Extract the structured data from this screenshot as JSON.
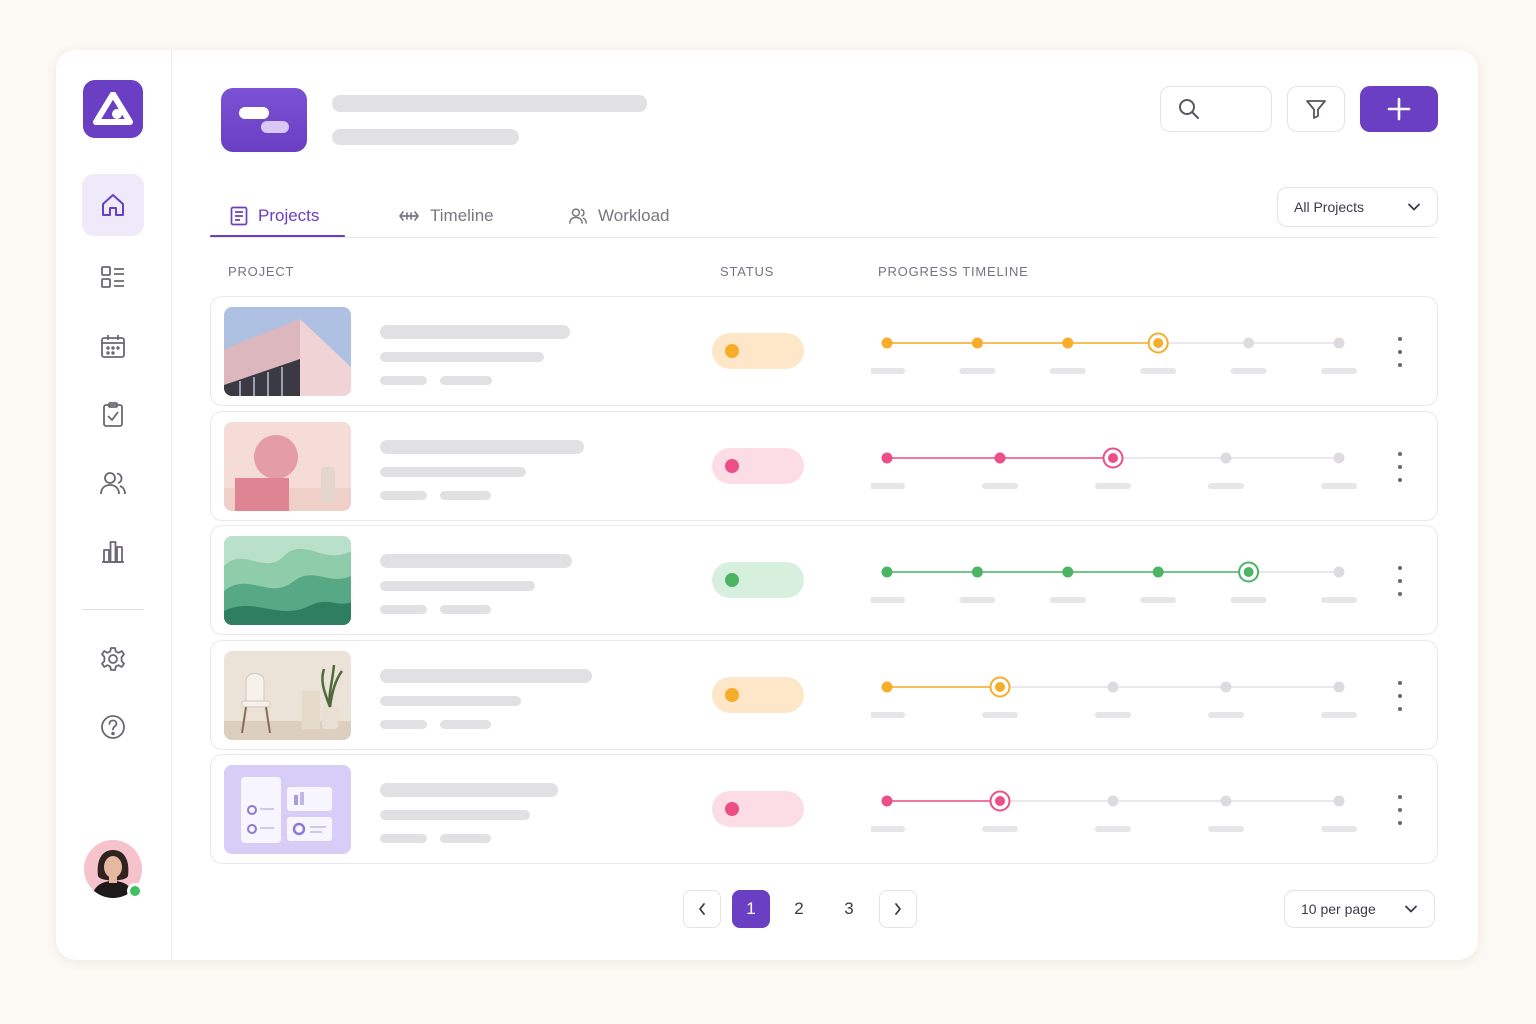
{
  "colors": {
    "accent": "#6a3fc4",
    "amber": "#f7ad2a",
    "pink": "#ec4f86",
    "green": "#4cb564"
  },
  "sidebar": {
    "items": [
      {
        "icon": "home-icon",
        "active": true
      },
      {
        "icon": "dashboard-list-icon",
        "active": false
      },
      {
        "icon": "calendar-icon",
        "active": false
      },
      {
        "icon": "clipboard-check-icon",
        "active": false
      },
      {
        "icon": "users-icon",
        "active": false
      },
      {
        "icon": "bar-chart-icon",
        "active": false
      },
      {
        "icon": "settings-icon",
        "active": false
      },
      {
        "icon": "help-icon",
        "active": false
      }
    ],
    "user_online": true
  },
  "tabs": [
    {
      "label": "Projects",
      "icon": "document-list-icon",
      "active": true
    },
    {
      "label": "Timeline",
      "icon": "arrows-horizontal-icon",
      "active": false
    },
    {
      "label": "Workload",
      "icon": "users-icon",
      "active": false
    }
  ],
  "filter_dropdown": {
    "value": "All Projects"
  },
  "table": {
    "headers": {
      "project": "PROJECT",
      "status": "STATUS",
      "progress": "PROGRESS TIMELINE"
    },
    "rows": [
      {
        "thumbnail": "pink-building",
        "status_color": "amber",
        "milestones": 6,
        "completed": 4
      },
      {
        "thumbnail": "pink-sphere",
        "status_color": "pink",
        "milestones": 5,
        "completed": 3
      },
      {
        "thumbnail": "green-waves",
        "status_color": "green",
        "milestones": 6,
        "completed": 5
      },
      {
        "thumbnail": "chair-plant",
        "status_color": "amber",
        "milestones": 5,
        "completed": 2
      },
      {
        "thumbnail": "dashboard-ui",
        "status_color": "pink",
        "milestones": 5,
        "completed": 2
      }
    ]
  },
  "pagination": {
    "pages": [
      "1",
      "2",
      "3"
    ],
    "current": "1",
    "per_page": "10 per page"
  }
}
